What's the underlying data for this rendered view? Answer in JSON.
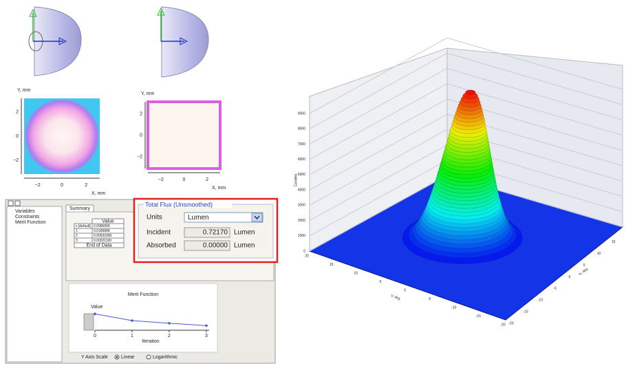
{
  "map_views": [
    {
      "y_label": "Y, mm",
      "x_label": "X, mm",
      "yticks": [
        "2",
        "0",
        "−2"
      ],
      "xticks": [
        "−2",
        "0",
        "2"
      ]
    },
    {
      "y_label": "Y, mm",
      "x_label": "X, mm",
      "yticks": [
        "2",
        "0",
        "−2"
      ],
      "xticks": [
        "−2",
        "0",
        "2"
      ]
    }
  ],
  "tree": {
    "items": [
      "Variables",
      "Constraints",
      "Merit Function"
    ]
  },
  "summary": {
    "tab": "Summary",
    "header": "Value",
    "rows": [
      [
        "x [default]",
        "0.0986858"
      ],
      [
        "1",
        "0.0186888"
      ],
      [
        "2",
        "0.00632990"
      ],
      [
        "3",
        "0.00021100"
      ]
    ],
    "footer": "End of Data"
  },
  "merit_chart": {
    "type": "line",
    "title": "Merit Function",
    "y_label": "Value",
    "x_label": "Iteration",
    "x": [
      0,
      1,
      2,
      3
    ],
    "values": [
      0.85,
      0.5,
      0.36,
      0.24
    ],
    "xlim": [
      0,
      3
    ],
    "ylim": [
      0,
      1
    ],
    "xticks": [
      0,
      1,
      2,
      3
    ],
    "color": "#4a5ad0"
  },
  "y_axis_scale": {
    "label": "Y Axis Scale",
    "options": [
      "Linear",
      "Logarithmic"
    ]
  },
  "flux": {
    "title": "Total Flux (Unsmoothed)",
    "units_label": "Units",
    "units": "Lumen",
    "rows": [
      {
        "label": "Incident",
        "value": "0.72170",
        "unit": "Lumen"
      },
      {
        "label": "Absorbed",
        "value": "0.00000",
        "unit": "Lumen"
      }
    ]
  },
  "surface": {
    "z_label": "Candela",
    "zticks": [
      0,
      1000,
      2000,
      3000,
      4000,
      5000,
      6000,
      7000,
      8000,
      9000
    ],
    "v_label": "V, deg",
    "vticks": [
      20,
      15,
      10,
      5,
      0,
      -5,
      -10,
      -15,
      -20
    ],
    "h_label": "H, deg",
    "hticks": [
      -20,
      -15,
      -10,
      -5,
      0,
      5,
      10,
      15,
      20
    ]
  }
}
